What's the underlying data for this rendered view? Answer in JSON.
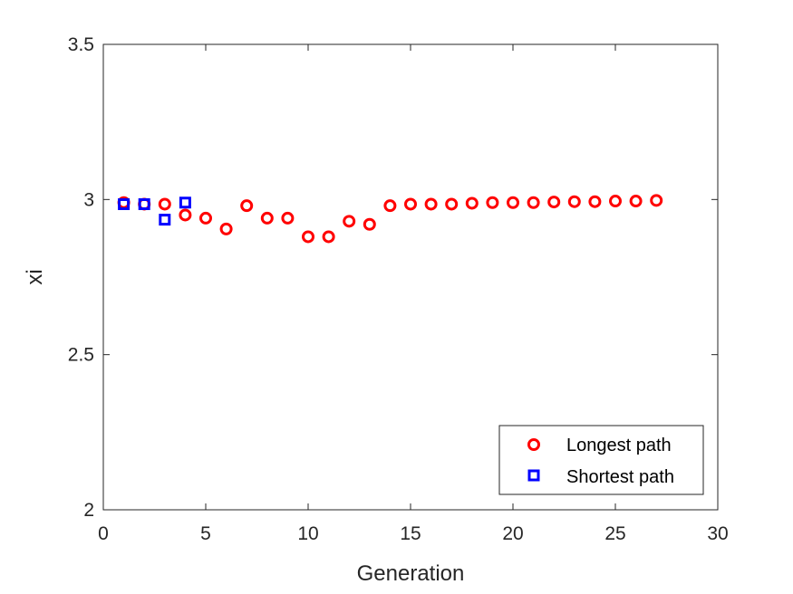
{
  "chart_data": {
    "type": "scatter",
    "xlabel": "Generation",
    "ylabel": "xi",
    "xlim": [
      0,
      30
    ],
    "ylim": [
      2,
      3.5
    ],
    "xticks": [
      0,
      5,
      10,
      15,
      20,
      25,
      30
    ],
    "yticks": [
      2,
      2.5,
      3,
      3.5
    ],
    "xtick_labels": [
      "0",
      "5",
      "10",
      "15",
      "20",
      "25",
      "30"
    ],
    "ytick_labels": [
      "2",
      "2.5",
      "3",
      "3.5"
    ],
    "grid": false,
    "legend_position": "bottom-right",
    "series": [
      {
        "name": "Longest path",
        "marker": "circle",
        "color": "#ff0000",
        "x": [
          1,
          2,
          3,
          4,
          5,
          6,
          7,
          8,
          9,
          10,
          11,
          12,
          13,
          14,
          15,
          16,
          17,
          18,
          19,
          20,
          21,
          22,
          23,
          24,
          25,
          26,
          27
        ],
        "y": [
          2.99,
          2.985,
          2.985,
          2.95,
          2.94,
          2.905,
          2.98,
          2.94,
          2.94,
          2.88,
          2.88,
          2.93,
          2.92,
          2.98,
          2.985,
          2.985,
          2.985,
          2.988,
          2.99,
          2.99,
          2.99,
          2.992,
          2.993,
          2.993,
          2.995,
          2.995,
          2.997
        ]
      },
      {
        "name": "Shortest path",
        "marker": "square",
        "color": "#0000ff",
        "x": [
          1,
          2,
          3,
          4
        ],
        "y": [
          2.985,
          2.985,
          2.935,
          2.99
        ]
      }
    ]
  }
}
